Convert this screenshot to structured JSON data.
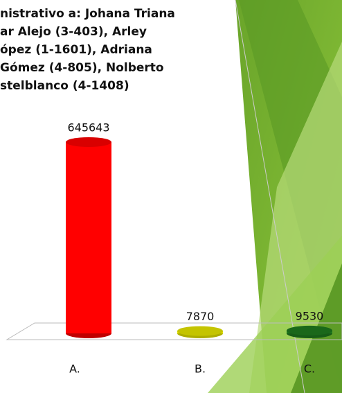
{
  "chart_data": {
    "type": "bar3d",
    "title": [
      "nistrativo a: Johana Triana",
      "ar Alejo (3-403), Arley",
      "ópez (1-1601), Adriana",
      "Gómez (4-805), Nolberto",
      "stelblanco (4-1408)"
    ],
    "categories": [
      "A.",
      "B.",
      "C."
    ],
    "values": [
      645643,
      7870,
      9530
    ],
    "colors": [
      "#ff0000",
      "#e6e600",
      "#1f7a1f"
    ]
  }
}
